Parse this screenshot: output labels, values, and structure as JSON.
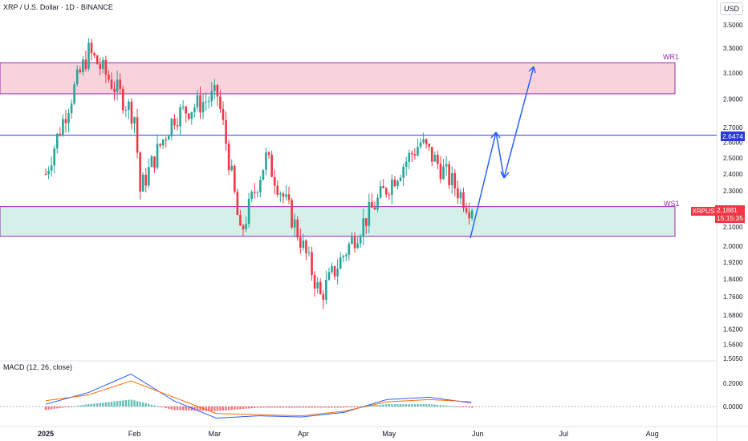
{
  "header": {
    "symbol_title": "XRP / U.S. Dollar · 1D · BINANCE",
    "currency_button": "USD"
  },
  "indicator": {
    "macd_title": "MACD (12, 26, close)"
  },
  "zones": {
    "resistance_label": "WR1",
    "support_label": "WS1"
  },
  "tags": {
    "resistance_price": "2.6474",
    "current_symbol": "XRPUSD",
    "current_price": "2.1881",
    "countdown": "15:15:35"
  },
  "colors": {
    "up": "#26a69a",
    "down": "#f23645",
    "resistance_zone": "#f8c8d3",
    "support_zone": "#c9ece4",
    "zone_border": "#9c27b0",
    "projection": "#2962ff",
    "macd_line": "#2962ff",
    "signal_line": "#ff6d00"
  },
  "chart_data": {
    "type": "candlestick",
    "title": "XRP / U.S. Dollar · 1D · BINANCE",
    "y_scale": "log",
    "y_ticks": [
      "3.5000",
      "3.3000",
      "3.1000",
      "2.9000",
      "2.7000",
      "2.6000",
      "2.5000",
      "2.4000",
      "2.3000",
      "2.2000",
      "2.1000",
      "2.0000",
      "1.9200",
      "1.8400",
      "1.7600",
      "1.6800",
      "1.6200",
      "1.5600",
      "1.5050"
    ],
    "x_ticks": [
      "2025",
      "Feb",
      "Mar",
      "Apr",
      "May",
      "Jun",
      "Jul",
      "Aug"
    ],
    "macd_ticks": [
      "0.2000",
      "0.0000"
    ],
    "close_sample": [
      {
        "date": "2025-01-01",
        "close": 2.4
      },
      {
        "date": "2025-01-16",
        "close": 3.27
      },
      {
        "date": "2025-02-01",
        "close": 2.78
      },
      {
        "date": "2025-02-03",
        "close": 2.3
      },
      {
        "date": "2025-02-15",
        "close": 2.78
      },
      {
        "date": "2025-03-02",
        "close": 2.93
      },
      {
        "date": "2025-03-10",
        "close": 2.05
      },
      {
        "date": "2025-03-19",
        "close": 2.5
      },
      {
        "date": "2025-04-07",
        "close": 1.76
      },
      {
        "date": "2025-04-21",
        "close": 2.1
      },
      {
        "date": "2025-05-12",
        "close": 2.6
      },
      {
        "date": "2025-05-30",
        "close": 2.1881
      }
    ],
    "levels": [
      {
        "label": "WR1",
        "from": 2.94,
        "to": 3.18
      },
      {
        "label": "WS1",
        "from": 2.05,
        "to": 2.21
      },
      {
        "label": "2.6474",
        "value": 2.6474
      }
    ],
    "macd": {
      "macd_line_sample": [
        0.02,
        0.12,
        0.28,
        0.05,
        -0.1,
        -0.08,
        -0.09,
        -0.05,
        0.06,
        0.08,
        0.03
      ],
      "signal_line_sample": [
        0.05,
        0.1,
        0.22,
        0.08,
        -0.06,
        -0.07,
        -0.08,
        -0.04,
        0.04,
        0.06,
        0.04
      ]
    }
  }
}
